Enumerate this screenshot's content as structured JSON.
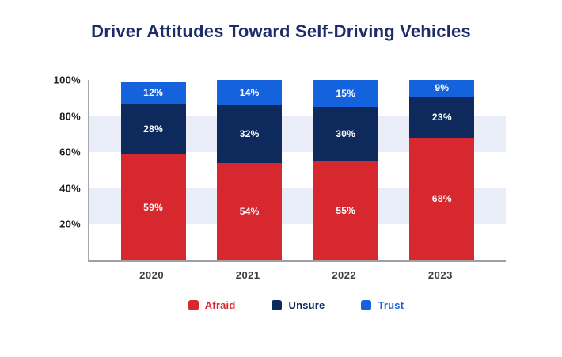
{
  "title": "Driver Attitudes Toward Self-Driving Vehicles",
  "chart_data": {
    "type": "bar",
    "stacked": true,
    "title": "Driver Attitudes Toward Self-Driving Vehicles",
    "categories": [
      "2020",
      "2021",
      "2022",
      "2023"
    ],
    "series": [
      {
        "name": "Afraid",
        "color": "#d7282f",
        "values": [
          59,
          54,
          55,
          68
        ]
      },
      {
        "name": "Unsure",
        "color": "#0e2a5c",
        "values": [
          28,
          32,
          30,
          23
        ]
      },
      {
        "name": "Trust",
        "color": "#1563dc",
        "values": [
          12,
          14,
          15,
          9
        ]
      }
    ],
    "value_suffix": "%",
    "y_ticks": [
      {
        "label": "100%",
        "value": 100
      },
      {
        "label": "80%",
        "value": 80
      },
      {
        "label": "60%",
        "value": 60
      },
      {
        "label": "40%",
        "value": 40
      },
      {
        "label": "20%",
        "value": 20
      }
    ],
    "ylim": [
      0,
      100
    ],
    "xlabel": "",
    "ylabel": "",
    "grid": "alternating horizontal bands",
    "bands": [
      {
        "from": 60,
        "to": 80
      },
      {
        "from": 20,
        "to": 40
      }
    ],
    "band_color": "#e8edf8",
    "axis_color": "#a0a0a4",
    "label_color_inside_bars": "#ffffff",
    "title_color": "#1d2d69",
    "legend_position": "bottom"
  }
}
